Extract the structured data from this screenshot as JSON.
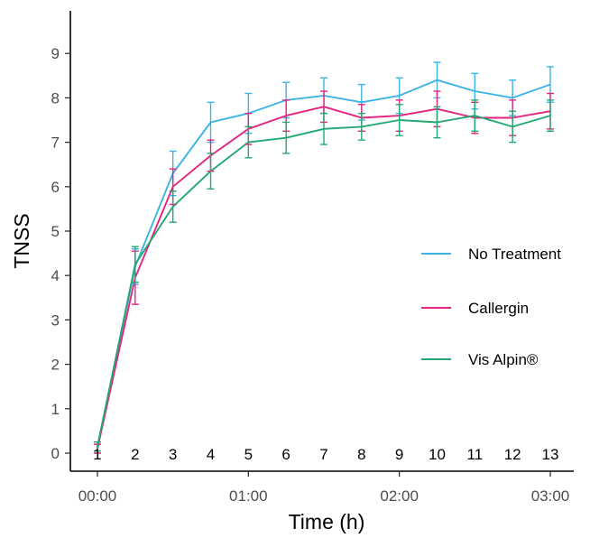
{
  "chart_data": {
    "type": "line",
    "title": "",
    "xlabel": "Time (h)",
    "ylabel": "TNSS",
    "x": [
      "00:00",
      "00:15",
      "00:30",
      "00:45",
      "01:00",
      "01:15",
      "01:30",
      "01:45",
      "02:00",
      "02:15",
      "02:30",
      "02:45",
      "03:00"
    ],
    "x_ticks": [
      "00:00",
      "01:00",
      "02:00",
      "03:00"
    ],
    "xlim": [
      "00:00",
      "03:00"
    ],
    "point_labels": [
      "1",
      "2",
      "3",
      "4",
      "5",
      "6",
      "7",
      "8",
      "9",
      "10",
      "11",
      "12",
      "13"
    ],
    "ylim": [
      0,
      9
    ],
    "y_ticks": [
      "0",
      "1",
      "2",
      "3",
      "4",
      "5",
      "6",
      "7",
      "8",
      "9"
    ],
    "grid": false,
    "legend_position": "right",
    "series": [
      {
        "name": "No Treatment",
        "color": "#3cb4e6",
        "values": [
          0.1,
          4.2,
          6.3,
          7.45,
          7.65,
          7.95,
          8.05,
          7.9,
          8.05,
          8.4,
          8.15,
          8.0,
          8.3
        ],
        "error": [
          0.1,
          0.4,
          0.5,
          0.45,
          0.45,
          0.4,
          0.4,
          0.4,
          0.4,
          0.4,
          0.4,
          0.4,
          0.4
        ]
      },
      {
        "name": "Callergin",
        "color": "#e6247f",
        "values": [
          0.1,
          3.95,
          6.0,
          6.7,
          7.3,
          7.6,
          7.8,
          7.55,
          7.6,
          7.75,
          7.55,
          7.55,
          7.7
        ],
        "error": [
          0.1,
          0.6,
          0.4,
          0.35,
          0.35,
          0.35,
          0.35,
          0.3,
          0.35,
          0.4,
          0.35,
          0.4,
          0.4
        ]
      },
      {
        "name": "Vis Alpin®",
        "color": "#22a872",
        "values": [
          0.15,
          4.25,
          5.55,
          6.35,
          7.0,
          7.1,
          7.3,
          7.35,
          7.5,
          7.45,
          7.6,
          7.35,
          7.6
        ],
        "error": [
          0.1,
          0.4,
          0.35,
          0.4,
          0.35,
          0.35,
          0.35,
          0.3,
          0.35,
          0.35,
          0.35,
          0.35,
          0.35
        ]
      }
    ]
  }
}
